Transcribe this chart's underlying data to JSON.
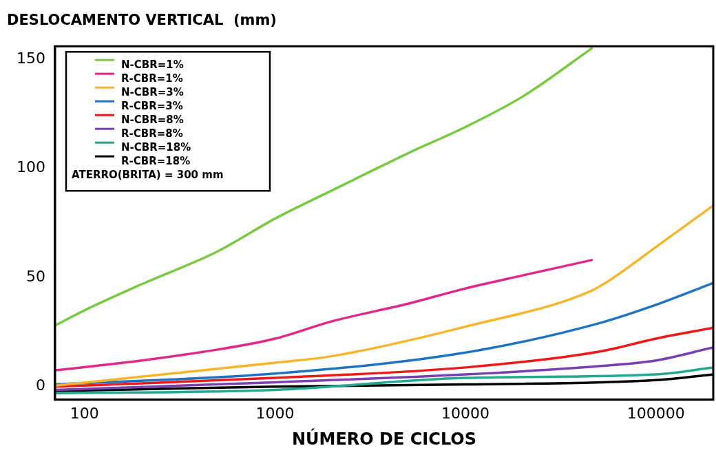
{
  "chart_data": {
    "type": "line",
    "title": "DESLOCAMENTO VERTICAL  (mm)",
    "xlabel": "NÚMERO DE CICLOS",
    "log": "x",
    "xlim": [
      70,
      200000
    ],
    "xticks": [
      100,
      1000,
      10000,
      100000
    ],
    "ylim": [
      -6,
      156
    ],
    "yticks": [
      0,
      50,
      100,
      150
    ],
    "grid": false,
    "legend": "top left",
    "marker": "none",
    "line_style": "solid",
    "annotations": [
      "ATERRO(BRITA) = 300 mm"
    ],
    "series": [
      {
        "name": "N-CBR=1%",
        "color": "#7ac943",
        "x": [
          70,
          100,
          200,
          500,
          1000,
          2000,
          5000,
          10000,
          20000,
          46000
        ],
        "values": [
          28,
          35,
          47,
          62,
          77,
          90,
          107,
          119,
          133,
          155
        ]
      },
      {
        "name": "R-CBR=1%",
        "color": "#e0288a",
        "x": [
          70,
          200,
          500,
          1000,
          2000,
          5000,
          10000,
          20000,
          46000
        ],
        "values": [
          7.5,
          12,
          17,
          22,
          30,
          38,
          45,
          51,
          58
        ]
      },
      {
        "name": "N-CBR=3%",
        "color": "#f7b52c",
        "x": [
          70,
          1000,
          2000,
          10000,
          46000,
          60000,
          100000,
          200000
        ],
        "values": [
          0.5,
          11,
          14,
          27.5,
          44,
          50,
          64,
          83
        ]
      },
      {
        "name": "R-CBR=3%",
        "color": "#1f73c1",
        "x": [
          70,
          1000,
          10000,
          50000,
          100000,
          200000
        ],
        "values": [
          1,
          6,
          15.6,
          29,
          37.5,
          47.5
        ]
      },
      {
        "name": "N-CBR=8%",
        "color": "#f01818",
        "x": [
          70,
          1000,
          10000,
          50000,
          100000,
          200000
        ],
        "values": [
          0,
          4,
          8.8,
          16,
          22,
          27
        ]
      },
      {
        "name": "R-CBR=8%",
        "color": "#7a3fb0",
        "x": [
          70,
          1000,
          10000,
          50000,
          100000,
          200000
        ],
        "values": [
          -1.5,
          2,
          5.6,
          9.4,
          12,
          18
        ]
      },
      {
        "name": "N-CBR=18%",
        "color": "#22a98f",
        "x": [
          70,
          1000,
          10000,
          100000,
          200000
        ],
        "values": [
          -3,
          -1.5,
          4,
          5.6,
          8.8
        ]
      },
      {
        "name": "R-CBR=18%",
        "color": "#000000",
        "x": [
          70,
          1000,
          10000,
          100000,
          200000
        ],
        "values": [
          -2,
          0,
          1,
          3,
          5.6
        ]
      }
    ]
  }
}
